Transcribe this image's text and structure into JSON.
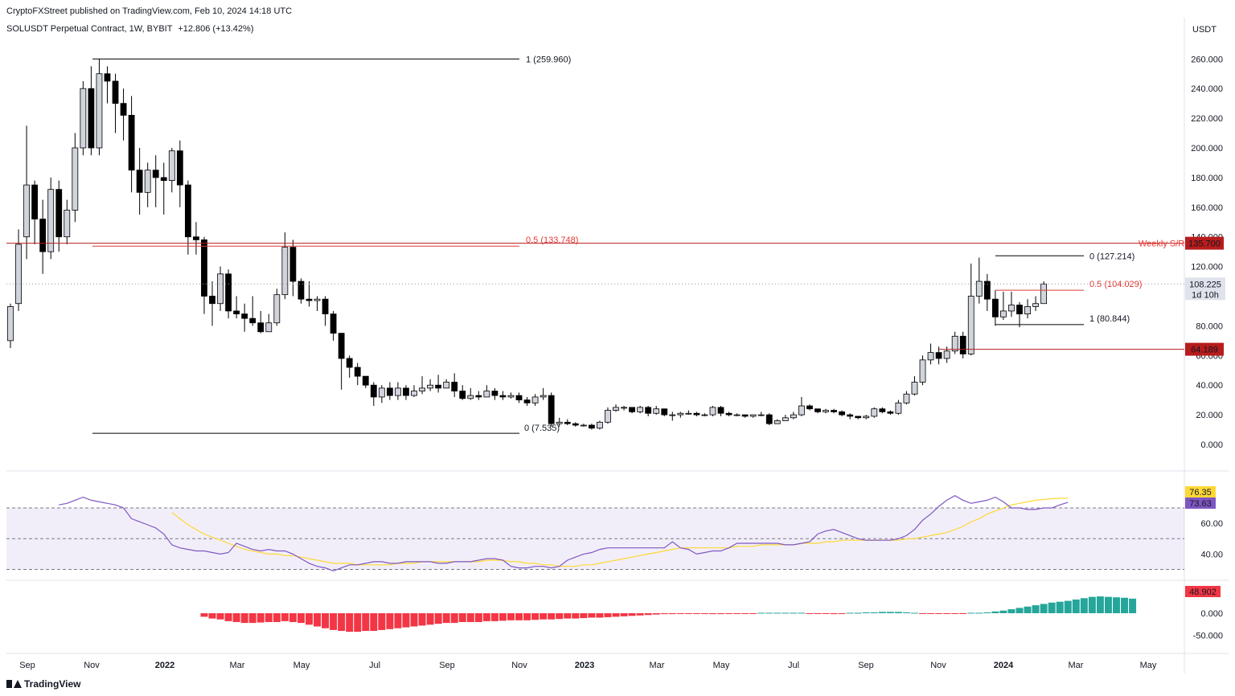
{
  "header": {
    "publisher": "CryptoFXStreet published on TradingView.com, Feb 10, 2024 14:18 UTC",
    "symbol": "SOLUSDT Perpetual Contract, 1W, BYBIT",
    "change": "+12.806 (+13.42%)"
  },
  "currency": "USDT",
  "footer": {
    "brand": "TradingView"
  },
  "colors": {
    "up_fill": "#d1d4dc",
    "down_fill": "#000000",
    "fib_red": "#e53935",
    "sr_red": "#b71c1c",
    "rsi": "#7e57c2",
    "rsi_ma": "#fdd835",
    "hist_pos": "#26a69a",
    "hist_neg": "#f23645"
  },
  "chart_data": [
    {
      "type": "candlestick",
      "interval": "1W",
      "x_ticks": [
        "Sep",
        "Nov",
        "2022",
        "Mar",
        "May",
        "Jul",
        "Sep",
        "Nov",
        "2023",
        "Mar",
        "May",
        "Jul",
        "Sep",
        "Nov",
        "2024",
        "Mar",
        "May"
      ],
      "y_ticks": [
        "260.000",
        "240.000",
        "220.000",
        "200.000",
        "180.000",
        "160.000",
        "140.000",
        "120.000",
        "100.000",
        "80.000",
        "60.000",
        "40.000",
        "20.000",
        "0.000"
      ],
      "ylim": [
        -3,
        278
      ],
      "start_week": "2021-08-16",
      "candles": [
        [
          70,
          93,
          65,
          95
        ],
        [
          95,
          135,
          90,
          145
        ],
        [
          140,
          175,
          125,
          215
        ],
        [
          175,
          152,
          135,
          178
        ],
        [
          152,
          130,
          115,
          165
        ],
        [
          130,
          172,
          125,
          180
        ],
        [
          172,
          140,
          130,
          178
        ],
        [
          140,
          158,
          135,
          165
        ],
        [
          158,
          200,
          150,
          210
        ],
        [
          200,
          240,
          195,
          245
        ],
        [
          240,
          200,
          195,
          255
        ],
        [
          200,
          250,
          195,
          260
        ],
        [
          250,
          245,
          230,
          255
        ],
        [
          245,
          230,
          210,
          250
        ],
        [
          230,
          222,
          205,
          240
        ],
        [
          222,
          185,
          170,
          235
        ],
        [
          185,
          170,
          155,
          200
        ],
        [
          170,
          185,
          160,
          190
        ],
        [
          185,
          180,
          160,
          195
        ],
        [
          180,
          178,
          155,
          190
        ],
        [
          178,
          198,
          170,
          200
        ],
        [
          198,
          175,
          160,
          205
        ],
        [
          175,
          140,
          128,
          178
        ],
        [
          140,
          138,
          128,
          150
        ],
        [
          138,
          100,
          88,
          140
        ],
        [
          100,
          95,
          80,
          110
        ],
        [
          95,
          115,
          90,
          120
        ],
        [
          115,
          90,
          85,
          118
        ],
        [
          90,
          88,
          85,
          100
        ],
        [
          88,
          85,
          76,
          95
        ],
        [
          85,
          82,
          80,
          100
        ],
        [
          82,
          76,
          75,
          90
        ],
        [
          76,
          82,
          78,
          88
        ],
        [
          82,
          101,
          80,
          105
        ],
        [
          101,
          133,
          98,
          143
        ],
        [
          133,
          110,
          100,
          138
        ],
        [
          110,
          98,
          95,
          112
        ],
        [
          98,
          97,
          93,
          110
        ],
        [
          97,
          98,
          90,
          100
        ],
        [
          98,
          88,
          80,
          100
        ],
        [
          88,
          75,
          70,
          90
        ],
        [
          75,
          58,
          37,
          75
        ],
        [
          58,
          52,
          45,
          60
        ],
        [
          52,
          46,
          40,
          55
        ],
        [
          46,
          40,
          38,
          45
        ],
        [
          40,
          32,
          26,
          42
        ],
        [
          32,
          38,
          28,
          40
        ],
        [
          38,
          33,
          30,
          42
        ],
        [
          33,
          38,
          30,
          42
        ],
        [
          38,
          33,
          30,
          40
        ],
        [
          33,
          36,
          32,
          40
        ],
        [
          36,
          38,
          34,
          46
        ],
        [
          38,
          40,
          36,
          44
        ],
        [
          40,
          38,
          35,
          47
        ],
        [
          38,
          42,
          38,
          44
        ],
        [
          42,
          36,
          32,
          48
        ],
        [
          36,
          31,
          30,
          40
        ],
        [
          31,
          33,
          30,
          38
        ],
        [
          33,
          32,
          30,
          36
        ],
        [
          32,
          36,
          32,
          40
        ],
        [
          36,
          33,
          30,
          38
        ],
        [
          33,
          32,
          30,
          36
        ],
        [
          32,
          33,
          31,
          35
        ],
        [
          33,
          30,
          28,
          35
        ],
        [
          30,
          28,
          26,
          32
        ],
        [
          28,
          32,
          26,
          34
        ],
        [
          32,
          33,
          30,
          38
        ],
        [
          33,
          14,
          12,
          35
        ],
        [
          14,
          15,
          12,
          18
        ],
        [
          15,
          14,
          13,
          17
        ],
        [
          14,
          13,
          12,
          15
        ],
        [
          13,
          13,
          12,
          14
        ],
        [
          13,
          11,
          10,
          14
        ],
        [
          11,
          15,
          10,
          16
        ],
        [
          15,
          23,
          14,
          25
        ],
        [
          23,
          25,
          22,
          27
        ],
        [
          25,
          25,
          23,
          26
        ],
        [
          25,
          22,
          21,
          25
        ],
        [
          22,
          25,
          21,
          26
        ],
        [
          25,
          21,
          19,
          26
        ],
        [
          21,
          24,
          20,
          26
        ],
        [
          24,
          20,
          19,
          24
        ],
        [
          20,
          20,
          16,
          22
        ],
        [
          20,
          21,
          18,
          22
        ],
        [
          21,
          21,
          20,
          23
        ],
        [
          21,
          20,
          19,
          22
        ],
        [
          20,
          20,
          19,
          21
        ],
        [
          20,
          25,
          19,
          26
        ],
        [
          25,
          21,
          19,
          26
        ],
        [
          21,
          20,
          19,
          22
        ],
        [
          20,
          20,
          19,
          21
        ],
        [
          20,
          19,
          18,
          20
        ],
        [
          19,
          20,
          18,
          20
        ],
        [
          20,
          20,
          19,
          22
        ],
        [
          20,
          14,
          13,
          21
        ],
        [
          14,
          16,
          14,
          17
        ],
        [
          16,
          18,
          16,
          20
        ],
        [
          18,
          20,
          17,
          22
        ],
        [
          20,
          26,
          19,
          32
        ],
        [
          26,
          24,
          23,
          27
        ],
        [
          24,
          22,
          21,
          24
        ],
        [
          22,
          23,
          21,
          24
        ],
        [
          23,
          22,
          21,
          24
        ],
        [
          22,
          20,
          19,
          23
        ],
        [
          20,
          19,
          17,
          21
        ],
        [
          19,
          18,
          17,
          19
        ],
        [
          18,
          19,
          17,
          20
        ],
        [
          19,
          24,
          18,
          25
        ],
        [
          24,
          22,
          21,
          25
        ],
        [
          22,
          21,
          20,
          23
        ],
        [
          21,
          28,
          20,
          30
        ],
        [
          28,
          34,
          27,
          36
        ],
        [
          34,
          42,
          33,
          46
        ],
        [
          42,
          57,
          40,
          60
        ],
        [
          57,
          62,
          54,
          68
        ],
        [
          62,
          58,
          54,
          66
        ],
        [
          58,
          63,
          55,
          66
        ],
        [
          63,
          73,
          61,
          76
        ],
        [
          73,
          61,
          58,
          76
        ],
        [
          61,
          100,
          60,
          122
        ],
        [
          100,
          110,
          95,
          126
        ],
        [
          110,
          98,
          90,
          115
        ],
        [
          98,
          86,
          80,
          104
        ],
        [
          86,
          90,
          84,
          103
        ],
        [
          90,
          94,
          86,
          103
        ],
        [
          94,
          88,
          79,
          96
        ],
        [
          88,
          93,
          85,
          98
        ],
        [
          93,
          95,
          90,
          100
        ],
        [
          95,
          108.225,
          95,
          110
        ]
      ],
      "levels": [
        {
          "label": "1 (259.960)",
          "value": 259.96
        },
        {
          "label": "0.5 (133.748)",
          "value": 133.748
        },
        {
          "label": "0 (7.535)",
          "value": 7.535
        },
        {
          "label": "0 (127.214)",
          "value": 127.214
        },
        {
          "label": "0.5 (104.029)",
          "value": 104.029
        },
        {
          "label": "1 (80.844)",
          "value": 80.844
        }
      ],
      "weekly_sr": {
        "label": "Weekly S/R",
        "value": 135.7,
        "tag": "135.700"
      },
      "support": {
        "value": 64.189,
        "tag": "64.189"
      },
      "last_price": {
        "value": 108.225,
        "tag": "108.225",
        "countdown": "1d 10h"
      }
    },
    {
      "type": "line",
      "name": "RSI",
      "y_ticks": [
        "60.00",
        "40.00"
      ],
      "bands": [
        70,
        50,
        30
      ],
      "ylim": [
        28,
        85
      ],
      "series": [
        {
          "values": [
            72,
            73,
            75,
            77,
            75,
            74,
            73,
            72,
            70,
            63,
            61,
            59,
            57,
            53,
            46,
            44,
            43,
            42,
            42,
            41,
            40,
            41,
            47,
            45,
            43,
            42,
            43,
            42,
            42,
            40,
            37,
            34,
            32,
            31,
            29,
            31,
            33,
            33,
            34,
            35,
            35,
            34,
            34,
            35,
            35,
            35,
            35,
            34,
            34,
            35,
            35,
            35,
            36,
            37,
            37,
            36,
            32,
            31,
            31,
            32,
            32,
            31,
            32,
            36,
            38,
            40,
            41,
            43,
            44,
            44,
            44,
            44,
            44,
            44,
            44,
            44,
            48,
            44,
            43,
            40,
            41,
            42,
            42,
            44,
            47,
            47,
            47,
            47,
            47,
            47,
            46,
            46,
            47,
            48,
            53,
            55,
            56,
            54,
            52,
            50,
            49,
            49,
            49,
            49,
            50,
            52,
            56,
            62,
            66,
            71,
            75,
            78,
            75,
            73,
            74,
            75,
            77,
            74,
            70,
            70,
            69,
            69,
            70,
            70,
            72,
            73.63
          ]
        },
        {
          "values": [
            null,
            null,
            null,
            null,
            null,
            null,
            null,
            null,
            null,
            null,
            null,
            null,
            null,
            null,
            67,
            63,
            59,
            56,
            53,
            51,
            49,
            47,
            45,
            43,
            42,
            41,
            40,
            40,
            39,
            39,
            38,
            37,
            36,
            35,
            34,
            34,
            34,
            33,
            33,
            33,
            33,
            33,
            34,
            34,
            34,
            35,
            35,
            35,
            35,
            35,
            35,
            35,
            35,
            36,
            36,
            36,
            35,
            35,
            34,
            34,
            33,
            33,
            32,
            32,
            32,
            33,
            33,
            34,
            35,
            36,
            37,
            38,
            39,
            40,
            41,
            42,
            43,
            44,
            44,
            44,
            44,
            44,
            44,
            44,
            45,
            45,
            45,
            46,
            46,
            46,
            46,
            46,
            47,
            47,
            47,
            48,
            48,
            49,
            49,
            49,
            49,
            49,
            49,
            49,
            49,
            50,
            50,
            51,
            52,
            53,
            54,
            56,
            58,
            61,
            63,
            66,
            68,
            70,
            72,
            73,
            74,
            75,
            75.5,
            76,
            76.3,
            76.35
          ]
        }
      ],
      "tags": [
        "76.35",
        "73.63"
      ]
    },
    {
      "type": "bar",
      "name": "Histogram",
      "y_ticks": [
        "0.000",
        "-50.000"
      ],
      "ylim": [
        -55,
        38
      ],
      "start_index": 24,
      "values": [
        -8,
        -12,
        -14,
        -18,
        -20,
        -22,
        -22,
        -21,
        -20,
        -20,
        -18,
        -20,
        -22,
        -26,
        -30,
        -34,
        -38,
        -40,
        -42,
        -42,
        -40,
        -40,
        -38,
        -36,
        -34,
        -32,
        -30,
        -28,
        -26,
        -24,
        -22,
        -22,
        -20,
        -20,
        -20,
        -18,
        -18,
        -17,
        -16,
        -16,
        -16,
        -15,
        -14,
        -14,
        -13,
        -12,
        -12,
        -11,
        -10,
        -10,
        -9,
        -8,
        -7,
        -6,
        -5,
        -4,
        -3,
        -2,
        -2,
        -1,
        -1,
        -1,
        -1,
        -2,
        -2,
        -1,
        -1,
        -1,
        -1,
        1,
        1,
        1,
        1,
        1,
        1,
        -1,
        -1,
        -1,
        -2,
        -1,
        1,
        1,
        2,
        2,
        3,
        3,
        3,
        2,
        1,
        -1,
        -1,
        -1,
        -1,
        -1,
        -1,
        1,
        1,
        2,
        4,
        6,
        9,
        12,
        15,
        18,
        21,
        24,
        26,
        28,
        31,
        34,
        37,
        38,
        37,
        36,
        35,
        33
      ],
      "tag": "48.902"
    }
  ]
}
